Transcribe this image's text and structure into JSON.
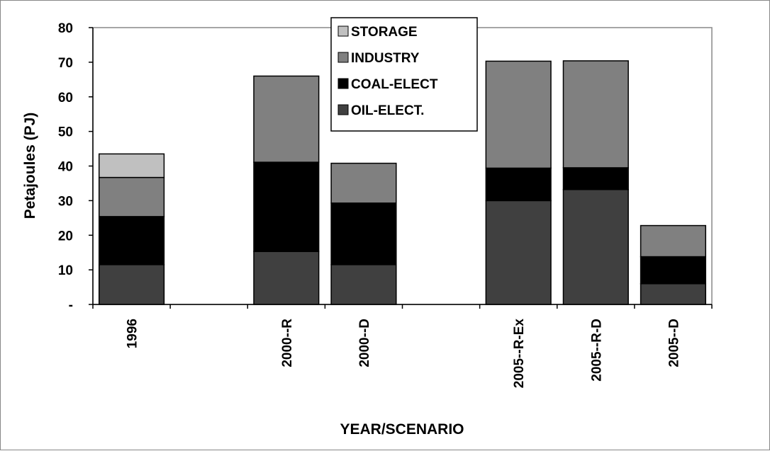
{
  "chart_data": {
    "type": "bar",
    "stacked": true,
    "title": "",
    "xlabel": "YEAR/SCENARIO",
    "ylabel": "Petajoules (PJ)",
    "ylim": [
      0,
      80
    ],
    "y_ticks": [
      0,
      10,
      20,
      30,
      40,
      50,
      60,
      70,
      80
    ],
    "y_tick_labels": [
      "-",
      "10",
      "20",
      "30",
      "40",
      "50",
      "60",
      "70",
      "80"
    ],
    "categories": [
      "1996",
      "",
      "2000--R",
      "2000--D",
      "",
      "2005--R-Ex",
      "2005--R-D",
      "2005--D"
    ],
    "series": [
      {
        "name": "OIL-ELECT.",
        "color": "#404040",
        "values": [
          11.5,
          null,
          15.3,
          11.5,
          null,
          30.0,
          33.2,
          6.0
        ]
      },
      {
        "name": "COAL-ELECT",
        "color": "#000000",
        "values": [
          13.9,
          null,
          25.8,
          17.8,
          null,
          9.4,
          6.3,
          7.8
        ]
      },
      {
        "name": "INDUSTRY",
        "color": "#808080",
        "values": [
          11.3,
          null,
          24.9,
          11.5,
          null,
          30.9,
          30.9,
          9.0
        ]
      },
      {
        "name": "STORAGE",
        "color": "#c0c0c0",
        "values": [
          6.8,
          null,
          0,
          0,
          null,
          0,
          0,
          0
        ]
      }
    ],
    "legend_order": [
      "STORAGE",
      "INDUSTRY",
      "COAL-ELECT",
      "OIL-ELECT."
    ],
    "legend_position": "top-center",
    "grid": false
  }
}
